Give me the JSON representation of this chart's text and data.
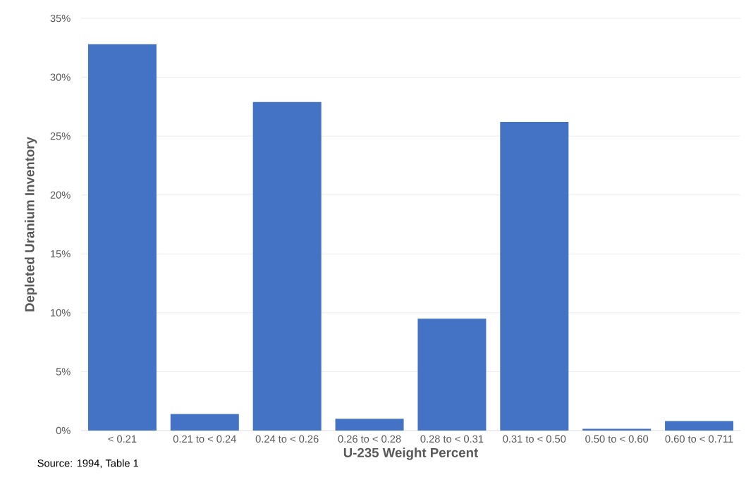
{
  "chart_data": {
    "type": "bar",
    "xlabel": "U-235 Weight Percent",
    "ylabel": "Depleted Uranium Inventory",
    "categories": [
      "< 0.21",
      "0.21 to < 0.24",
      "0.24 to < 0.26",
      "0.26 to < 0.28",
      "0.28 to < 0.31",
      "0.31 to < 0.50",
      "0.50 to < 0.60",
      "0.60 to < 0.711"
    ],
    "values": [
      32.8,
      1.4,
      27.9,
      1.0,
      9.5,
      26.2,
      0.15,
      0.8
    ],
    "color": "#4472c4",
    "ylim": [
      0,
      35
    ],
    "yticks": [
      {
        "value": 0,
        "label": "0%"
      },
      {
        "value": 5,
        "label": "5%"
      },
      {
        "value": 10,
        "label": "10%"
      },
      {
        "value": 15,
        "label": "15%"
      },
      {
        "value": 20,
        "label": "20%"
      },
      {
        "value": 25,
        "label": "25%"
      },
      {
        "value": 30,
        "label": "30%"
      },
      {
        "value": 35,
        "label": "35%"
      }
    ],
    "grid": "y",
    "annotations": [
      "Source: 1994, Table 1"
    ]
  }
}
